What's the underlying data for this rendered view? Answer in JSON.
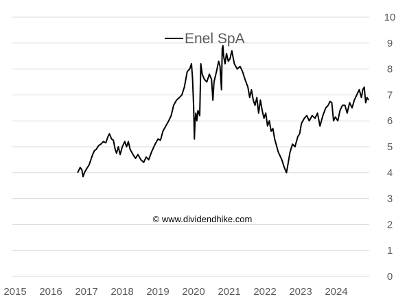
{
  "chart_data": {
    "type": "line",
    "legend": {
      "placement": "top-center",
      "label": "Enel SpA"
    },
    "watermark": "© www.dividendhike.com",
    "x_range": [
      2015.0,
      2025.0
    ],
    "y_range": [
      0,
      10
    ],
    "x_ticks": [
      "2015",
      "2016",
      "2017",
      "2018",
      "2019",
      "2020",
      "2021",
      "2022",
      "2023",
      "2024"
    ],
    "y_ticks": [
      "0",
      "1",
      "2",
      "3",
      "4",
      "5",
      "6",
      "7",
      "8",
      "9",
      "10"
    ],
    "gridlines": "horizontal",
    "line_color": "#000000",
    "series": [
      {
        "name": "Enel SpA",
        "x": [
          2016.83,
          2016.9,
          2016.95,
          2016.98,
          2017.02,
          2017.08,
          2017.15,
          2017.2,
          2017.25,
          2017.3,
          2017.35,
          2017.42,
          2017.48,
          2017.55,
          2017.62,
          2017.68,
          2017.72,
          2017.78,
          2017.83,
          2017.88,
          2017.92,
          2017.97,
          2018.02,
          2018.08,
          2018.15,
          2018.2,
          2018.25,
          2018.3,
          2018.38,
          2018.45,
          2018.52,
          2018.6,
          2018.68,
          2018.75,
          2018.82,
          2018.9,
          2019.0,
          2019.08,
          2019.15,
          2019.22,
          2019.3,
          2019.38,
          2019.45,
          2019.52,
          2019.6,
          2019.68,
          2019.75,
          2019.82,
          2019.9,
          2019.97,
          2020.02,
          2020.05,
          2020.08,
          2020.1,
          2020.12,
          2020.14,
          2020.17,
          2020.2,
          2020.25,
          2020.28,
          2020.32,
          2020.38,
          2020.45,
          2020.52,
          2020.58,
          2020.62,
          2020.65,
          2020.72,
          2020.78,
          2020.82,
          2020.86,
          2020.88,
          2020.9,
          2020.92,
          2020.96,
          2021.0,
          2021.05,
          2021.1,
          2021.15,
          2021.22,
          2021.3,
          2021.38,
          2021.45,
          2021.52,
          2021.6,
          2021.65,
          2021.7,
          2021.75,
          2021.8,
          2021.85,
          2021.9,
          2021.95,
          2022.0,
          2022.05,
          2022.1,
          2022.15,
          2022.2,
          2022.25,
          2022.3,
          2022.35,
          2022.45,
          2022.55,
          2022.62,
          2022.68,
          2022.72,
          2022.78,
          2022.85,
          2022.92,
          2023.0,
          2023.05,
          2023.1,
          2023.18,
          2023.25,
          2023.32,
          2023.4,
          2023.48,
          2023.55,
          2023.62,
          2023.7,
          2023.78,
          2023.85,
          2023.9,
          2023.95,
          2024.0,
          2024.05,
          2024.12,
          2024.18,
          2024.25,
          2024.32,
          2024.38,
          2024.45,
          2024.52,
          2024.58,
          2024.65,
          2024.72,
          2024.78,
          2024.82,
          2024.86,
          2024.9,
          2024.94,
          2024.98
        ],
        "values": [
          4.0,
          4.2,
          4.1,
          3.85,
          4.0,
          4.15,
          4.3,
          4.5,
          4.7,
          4.85,
          4.9,
          5.05,
          5.1,
          5.2,
          5.15,
          5.4,
          5.5,
          5.3,
          5.25,
          4.9,
          4.75,
          5.0,
          4.7,
          5.0,
          5.2,
          5.0,
          5.2,
          4.9,
          4.7,
          4.55,
          4.7,
          4.5,
          4.4,
          4.6,
          4.5,
          4.8,
          5.1,
          5.3,
          5.25,
          5.6,
          5.8,
          6.0,
          6.2,
          6.6,
          6.8,
          6.9,
          7.0,
          7.3,
          7.9,
          8.0,
          8.2,
          7.6,
          6.5,
          5.3,
          6.0,
          6.3,
          6.0,
          6.4,
          6.2,
          8.2,
          7.8,
          7.6,
          7.5,
          7.8,
          7.6,
          6.8,
          7.5,
          7.9,
          8.3,
          8.1,
          7.2,
          8.8,
          8.9,
          8.5,
          8.2,
          8.6,
          8.3,
          8.4,
          8.7,
          8.2,
          8.0,
          8.1,
          7.9,
          7.6,
          7.3,
          6.9,
          7.2,
          6.8,
          6.6,
          6.9,
          6.3,
          6.8,
          6.4,
          6.1,
          6.3,
          5.8,
          6.0,
          5.6,
          5.7,
          5.3,
          4.8,
          4.5,
          4.2,
          4.0,
          4.3,
          4.8,
          5.1,
          5.0,
          5.4,
          5.5,
          5.9,
          6.1,
          6.2,
          6.0,
          6.2,
          6.1,
          6.3,
          5.8,
          6.2,
          6.5,
          6.6,
          6.75,
          6.7,
          6.0,
          6.15,
          6.0,
          6.4,
          6.6,
          6.6,
          6.3,
          6.7,
          6.5,
          6.8,
          7.0,
          7.2,
          6.9,
          7.2,
          7.3,
          6.7,
          6.9,
          6.8
        ]
      }
    ]
  }
}
